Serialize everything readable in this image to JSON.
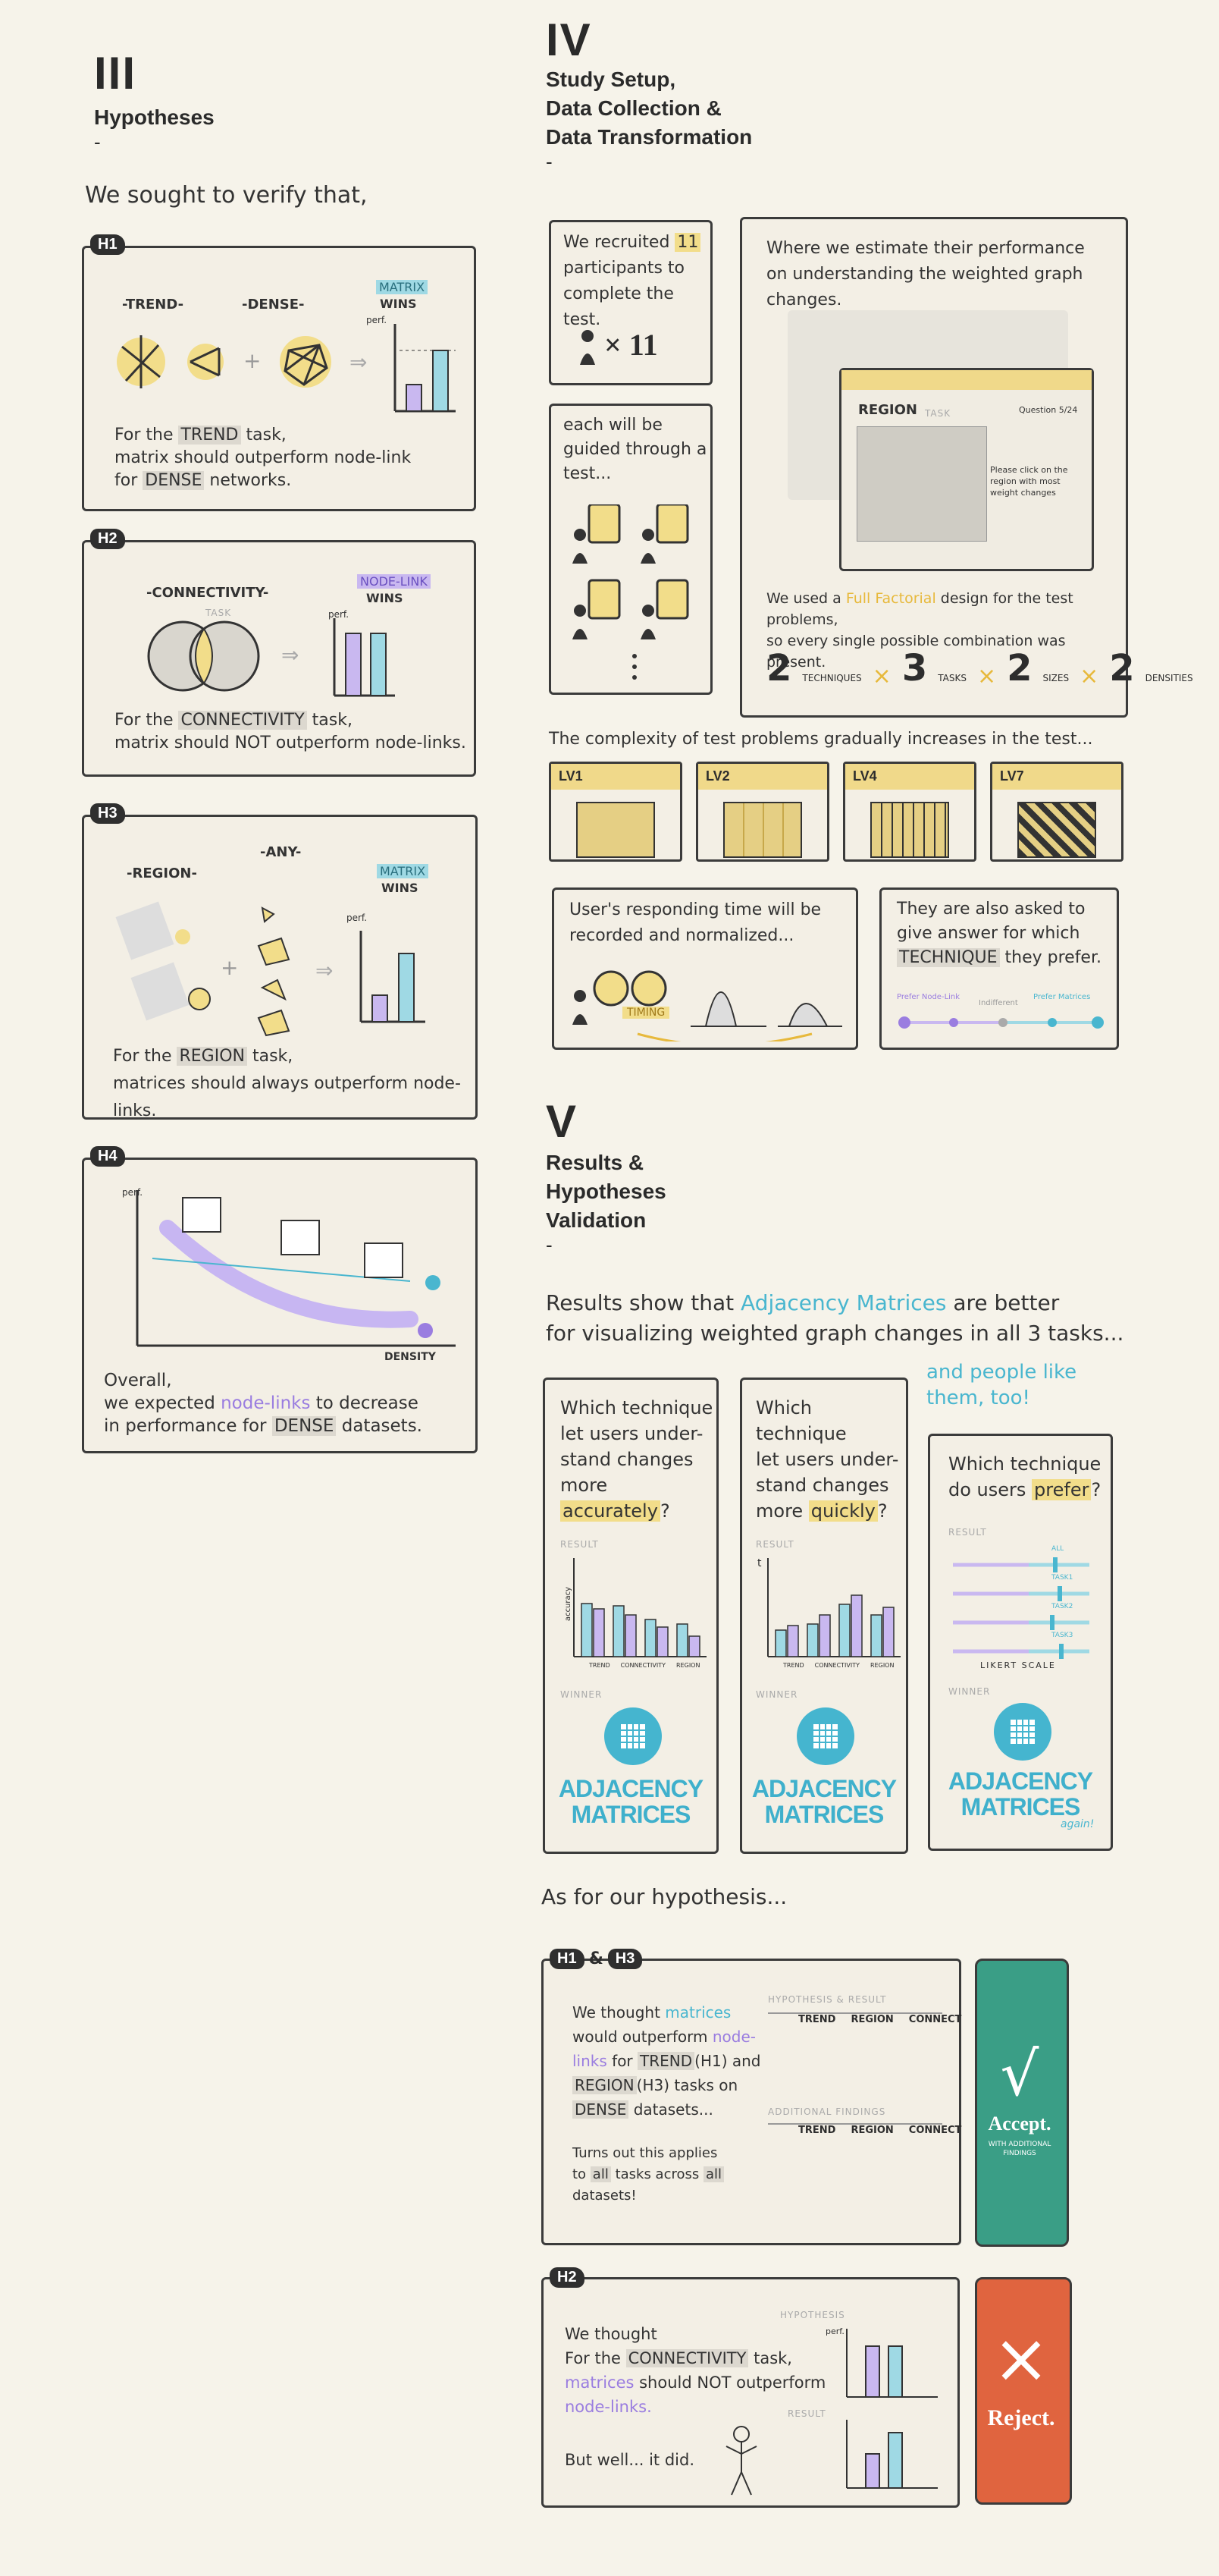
{
  "colors": {
    "background": "#f6f3ea",
    "yellow": "#f0d98a",
    "purple": "#9a7de0",
    "teal": "#49b6cf",
    "accept": "#3a9e86",
    "reject": "#e0643f"
  },
  "section3": {
    "numeral": "III",
    "title": "Hypotheses",
    "dash": "-",
    "intro": "We sought to verify that,",
    "h1": {
      "tag": "H1",
      "task_trend": "-TREND-",
      "task_dense": "-DENSE-",
      "winner": "MATRIX",
      "wins": "WINS",
      "perf": "perf.",
      "line1a": "For the ",
      "trend": "TREND",
      "line1b": " task,",
      "line2": "matrix should outperform node-link",
      "line3a": "for ",
      "dense": "DENSE",
      "line3b": " networks."
    },
    "h2": {
      "tag": "H2",
      "task": "-CONNECTIVITY-",
      "task_sub": "TASK",
      "winner": "NODE-LINK",
      "wins": "WINS",
      "perf": "perf.",
      "line1a": "For the ",
      "conn": "CONNECTIVITY",
      "line1b": " task,",
      "line2": "matrix should NOT outperform node-links."
    },
    "h3": {
      "tag": "H3",
      "task": "-REGION-",
      "task_any": "-ANY-",
      "winner": "MATRIX",
      "wins": "WINS",
      "perf": "perf.",
      "line1a": "For the ",
      "region": "REGION",
      "line1b": " task,",
      "line2": "matrices should always outperform node-links."
    },
    "h4": {
      "tag": "H4",
      "perf": "perf.",
      "density": "DENSITY",
      "line1": "Overall,",
      "line2a": "we expected ",
      "nodelinks": "node-links",
      "line2b": " to decrease",
      "line3a": "in performance for ",
      "dense": "DENSE",
      "line3b": " datasets."
    }
  },
  "section4": {
    "numeral": "IV",
    "title_l1": "Study Setup,",
    "title_l2": "Data Collection &",
    "title_l3": "Data Transformation",
    "dash": "-",
    "recruit_a": "We recruited ",
    "recruit_n": "11",
    "recruit_b": "participants to",
    "recruit_c": "complete the test.",
    "times": "× 11",
    "guided": "each will be guided through a test...",
    "estimate_l1": "Where we estimate their performance",
    "estimate_l2": "on understanding the weighted graph changes.",
    "ui_region": "REGION",
    "ui_task": "TASK",
    "ui_counter": "Question 5/24",
    "ui_instr": "Please click on the region with most weight changes",
    "design_a": "We used a ",
    "design_b": "Full Factorial",
    "design_c": " design for the test problems,",
    "design_d": "so every single possible combination was present.",
    "factors": [
      {
        "n": "2",
        "label": "TECHNIQUES"
      },
      {
        "n": "3",
        "label": "TASKS"
      },
      {
        "n": "2",
        "label": "SIZES"
      },
      {
        "n": "2",
        "label": "DENSITIES"
      }
    ],
    "complexity": "The complexity of test problems gradually increases in the test...",
    "levels": [
      "LV1",
      "LV2",
      "LV4",
      "LV7"
    ],
    "timing_l1": "User's responding time will be",
    "timing_l2": "recorded and normalized...",
    "timing_tag": "TIMING",
    "prefer_l1": "They are also asked to",
    "prefer_l2": "give answer for which",
    "prefer_l3a": "TECHNIQUE",
    "prefer_l3b": " they prefer.",
    "prefer_left": "Prefer Node-Link",
    "prefer_mid": "Indifferent",
    "prefer_right": "Prefer Matrices"
  },
  "section5": {
    "numeral": "V",
    "title_l1": "Results &",
    "title_l2": "Hypotheses",
    "title_l3": "Validation",
    "dash": "-",
    "results_a": "Results show that ",
    "results_b": "Adjacency Matrices",
    "results_c": " are better",
    "results_d": "for visualizing weighted graph changes in all 3 tasks...",
    "people_l1": "and people like",
    "people_l2": "them, too!",
    "cards": [
      {
        "q1": "Which technique",
        "q2": "let users under-",
        "q3": "stand changes",
        "q4a": "more ",
        "q4b": "accurately",
        "q4c": "?",
        "result": "RESULT",
        "winner": "WINNER",
        "axis": "accuracy",
        "cats": [
          "TREND",
          "CONNECTIVITY",
          "REGION"
        ],
        "logo_l1": "ADJACENCY",
        "logo_l2": "MATRICES",
        "again": ""
      },
      {
        "q1": "Which technique",
        "q2": "let users under-",
        "q3": "stand changes",
        "q4a": "more ",
        "q4b": "quickly",
        "q4c": "?",
        "result": "RESULT",
        "winner": "WINNER",
        "axis": "t",
        "cats": [
          "TREND",
          "CONNECTIVITY",
          "REGION"
        ],
        "logo_l1": "ADJACENCY",
        "logo_l2": "MATRICES",
        "again": ""
      },
      {
        "q1": "Which technique",
        "q2": "do users ",
        "q2b": "prefer",
        "q2c": "?",
        "result": "RESULT",
        "winner": "WINNER",
        "scale": "LIKERT SCALE",
        "rows": [
          "ALL",
          "TASK1",
          "TASK2",
          "TASK3"
        ],
        "logo_l1": "ADJACENCY",
        "logo_l2": "MATRICES",
        "again": "again!"
      }
    ],
    "as_for": "As for our hypothesis...",
    "h13": {
      "tag_a": "H1",
      "amp": "&",
      "tag_b": "H3",
      "t1a": "We thought ",
      "t1b": "matrices",
      "t2": "would outperform ",
      "t2b": "node-",
      "t3a": "links",
      "t3b": " for ",
      "t3c": "TREND",
      "t3d": "(H1) and",
      "t4a": "REGION",
      "t4b": "(H3) tasks on",
      "t5a": "DENSE",
      "t5b": " datasets...",
      "t6": "Turns out this applies",
      "t7a": "to ",
      "t7b": "all",
      "t7c": " tasks across ",
      "t7d": "all",
      "t8": "datasets!",
      "hyp_label": "HYPOTHESIS & RESULT",
      "add_label": "ADDITIONAL FINDINGS",
      "cols": [
        "TREND",
        "REGION",
        "CONNECT"
      ]
    },
    "accept": {
      "mark": "√",
      "label": "Accept.",
      "sub": "WITH ADDITIONAL FINDINGS"
    },
    "h2": {
      "tag": "H2",
      "t1": "We thought",
      "t2a": "For the ",
      "t2b": "CONNECTIVITY",
      "t2c": " task,",
      "t3a": "matrices",
      "t3b": " should NOT outperform",
      "t4": "node-links.",
      "t5": "But well... it did.",
      "hyp_label": "HYPOTHESIS",
      "res_label": "RESULT",
      "perf": "perf."
    },
    "reject": {
      "mark": "×",
      "label": "Reject."
    }
  }
}
